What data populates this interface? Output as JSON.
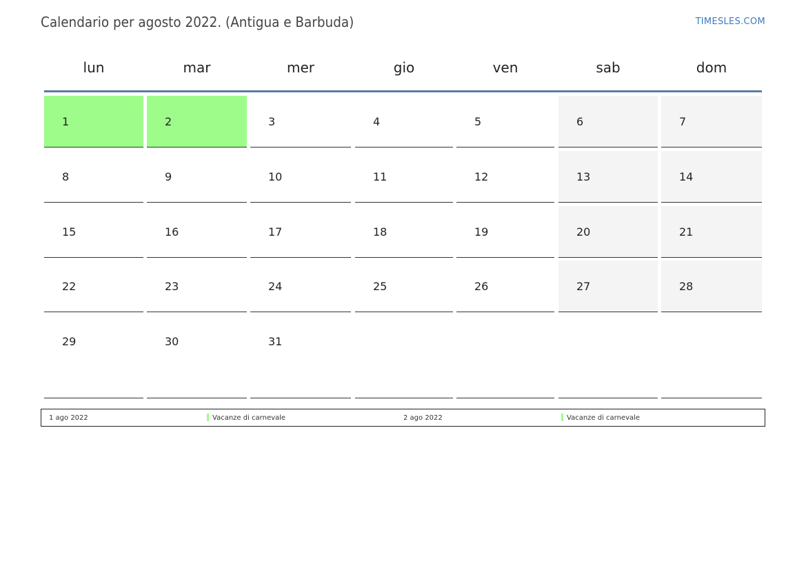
{
  "title": "Calendario per agosto 2022. (Antigua e Barbuda)",
  "brand": "TIMESLES.COM",
  "colors": {
    "holiday": "#9efc8a",
    "weekend": "#f4f4f4",
    "header_rule": "#5b7aa0",
    "brand": "#3b7bbf"
  },
  "weekdays": [
    "lun",
    "mar",
    "mer",
    "gio",
    "ven",
    "sab",
    "dom"
  ],
  "weeks": [
    [
      "1",
      "2",
      "3",
      "4",
      "5",
      "6",
      "7"
    ],
    [
      "8",
      "9",
      "10",
      "11",
      "12",
      "13",
      "14"
    ],
    [
      "15",
      "16",
      "17",
      "18",
      "19",
      "20",
      "21"
    ],
    [
      "22",
      "23",
      "24",
      "25",
      "26",
      "27",
      "28"
    ],
    [
      "29",
      "30",
      "31",
      "",
      "",
      "",
      ""
    ]
  ],
  "holiday_days": [
    "1",
    "2"
  ],
  "legend": [
    {
      "date": "1 ago 2022",
      "name": "Vacanze di carnevale"
    },
    {
      "date": "2 ago 2022",
      "name": "Vacanze di carnevale"
    }
  ]
}
